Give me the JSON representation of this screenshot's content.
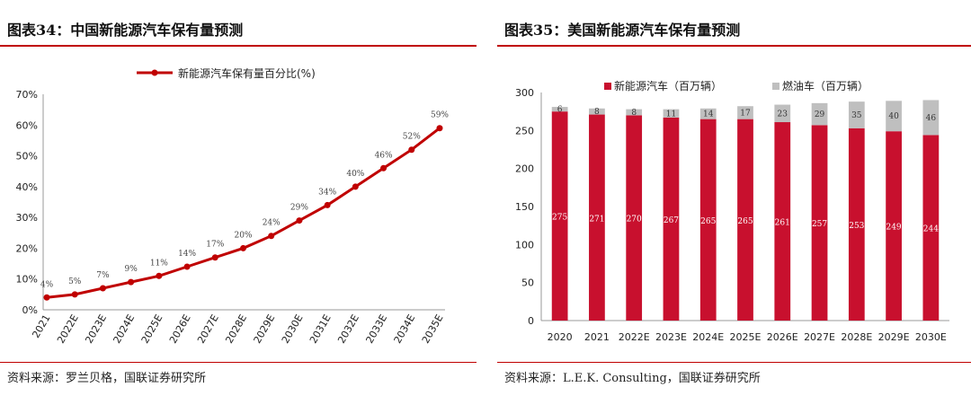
{
  "left": {
    "title": "图表34：中国新能源汽车保有量预测",
    "source": "资料来源：罗兰贝格，国联证券研究所"
  },
  "right": {
    "title": "图表35：美国新能源汽车保有量预测",
    "source": "资料来源：L.E.K. Consulting，国联证券研究所"
  },
  "colors": {
    "accent": "#c00000",
    "bar_red": "#c8102e",
    "bar_grey": "#bfbfbf"
  },
  "chart_data": [
    {
      "type": "line",
      "title": "",
      "legend": "新能源汽车保有量百分比(%)",
      "legend_position": "top-center",
      "categories": [
        "2021",
        "2022E",
        "2023E",
        "2024E",
        "2025E",
        "2026E",
        "2027E",
        "2028E",
        "2029E",
        "2030E",
        "2031E",
        "2032E",
        "2033E",
        "2034E",
        "2035E"
      ],
      "values": [
        4,
        5,
        7,
        9,
        11,
        14,
        17,
        20,
        24,
        29,
        34,
        40,
        46,
        52,
        59
      ],
      "labels": [
        "4%",
        "5%",
        "7%",
        "9%",
        "11%",
        "14%",
        "17%",
        "20%",
        "24%",
        "29%",
        "34%",
        "40%",
        "46%",
        "52%",
        "59%"
      ],
      "ylim": [
        0,
        70
      ],
      "yticks": [
        "0%",
        "10%",
        "20%",
        "30%",
        "40%",
        "50%",
        "60%",
        "70%"
      ],
      "grid": false
    },
    {
      "type": "bar",
      "stacked": true,
      "title": "",
      "legend_position": "top-center",
      "categories": [
        "2020",
        "2021",
        "2022E",
        "2023E",
        "2024E",
        "2025E",
        "2026E",
        "2027E",
        "2028E",
        "2029E",
        "2030E"
      ],
      "series": [
        {
          "name": "新能源汽车（百万辆）",
          "values": [
            275,
            271,
            270,
            267,
            265,
            265,
            261,
            257,
            253,
            249,
            244
          ]
        },
        {
          "name": "燃油车（百万辆）",
          "values": [
            6,
            8,
            8,
            11,
            14,
            17,
            23,
            29,
            35,
            40,
            46
          ]
        }
      ],
      "ylim": [
        0,
        300
      ],
      "yticks": [
        "0",
        "50",
        "100",
        "150",
        "200",
        "250",
        "300"
      ],
      "grid": false
    }
  ]
}
